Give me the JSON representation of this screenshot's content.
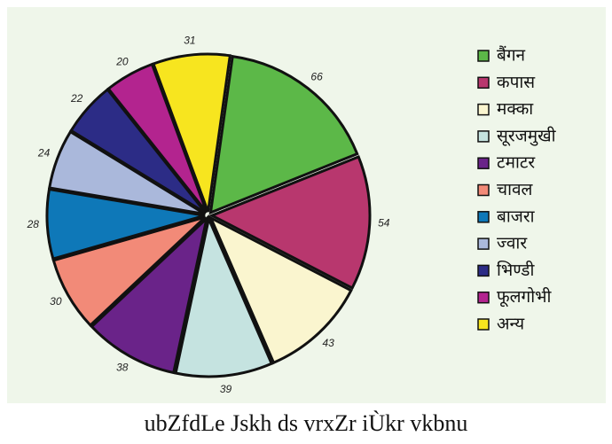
{
  "chart_data": {
    "type": "pie",
    "categories": [
      "बैंगन",
      "कपास",
      "मक्का",
      "सूरजमुखी",
      "टमाटर",
      "चावल",
      "बाजरा",
      "ज्वार",
      "भिण्डी",
      "फूलगोभी",
      "अन्य"
    ],
    "values": [
      66,
      54,
      43,
      39,
      38,
      30,
      28,
      24,
      22,
      20,
      31
    ],
    "colors": [
      "#5cb848",
      "#b8376e",
      "#faf5cf",
      "#c5e3e0",
      "#6a2389",
      "#f28a78",
      "#0e78b8",
      "#aab8db",
      "#2c2c86",
      "#b3248f",
      "#f7e51f"
    ],
    "footer": "ubZfdLe Jskh ds vrxZr iÙkr vkbnu"
  }
}
